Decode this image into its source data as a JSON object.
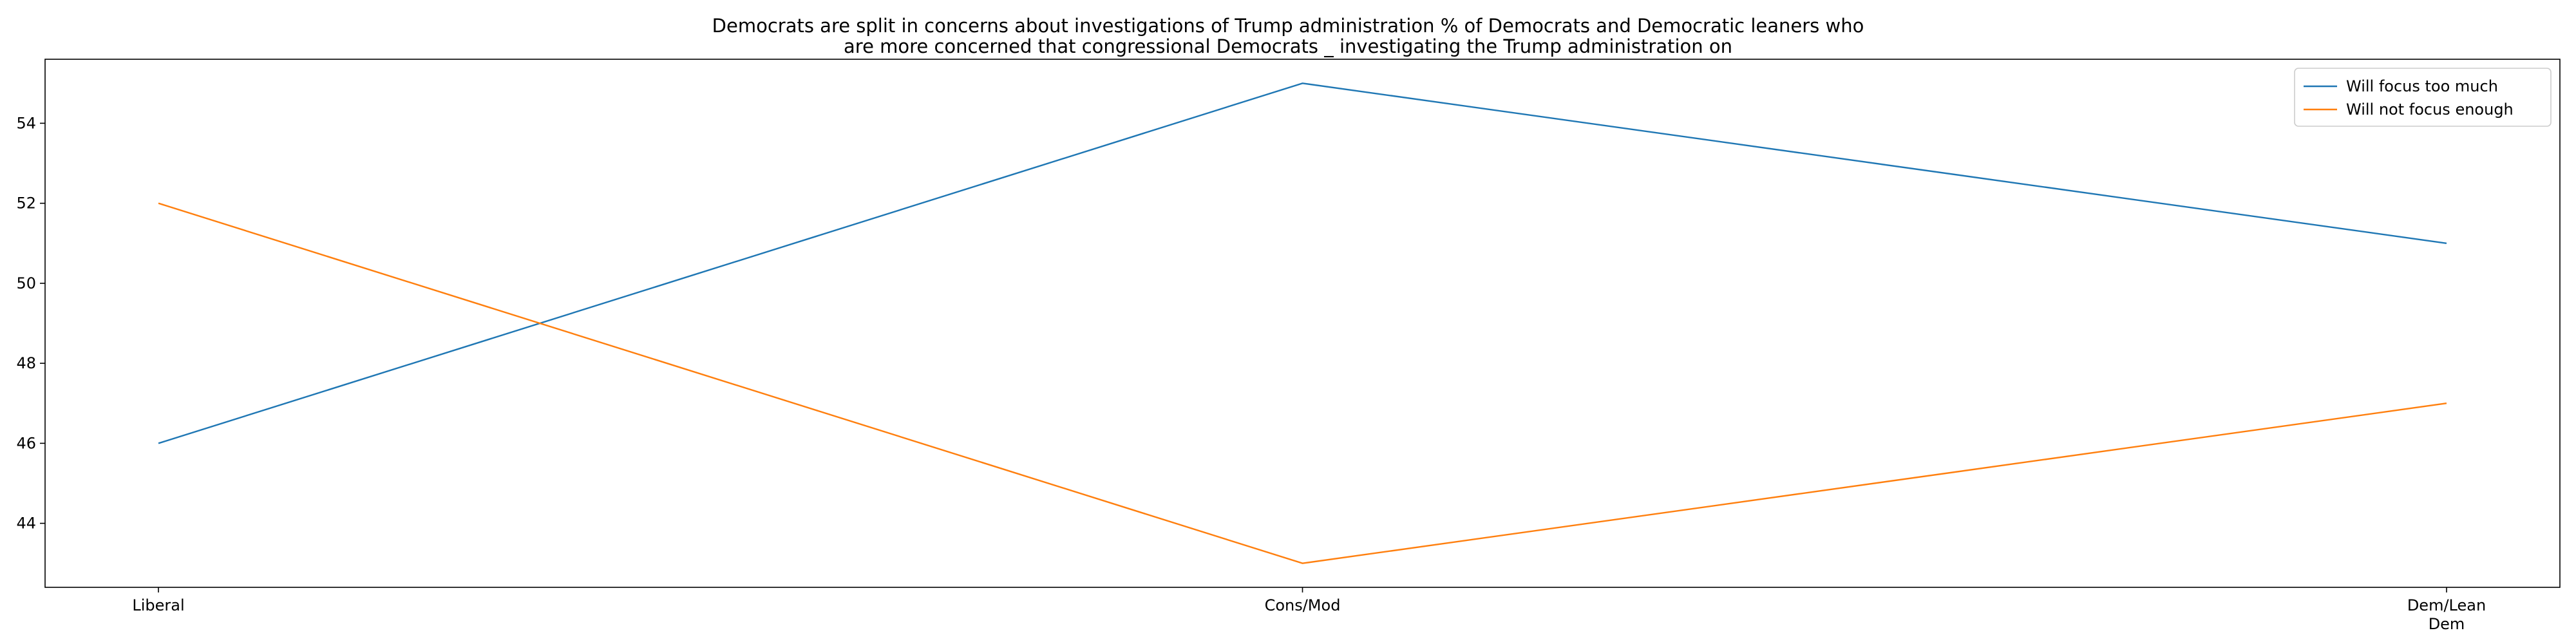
{
  "chart_data": {
    "type": "line",
    "title_lines": [
      "Democrats are split in concerns about investigations of Trump administration % of Democrats and Democratic leaners who",
      "are more concerned that congressional Democrats _ investigating the Trump administration on"
    ],
    "categories": [
      "Liberal",
      "Cons/Mod",
      "Dem/Lean Dem"
    ],
    "category_tick_lines": [
      [
        "Liberal"
      ],
      [
        "Cons/Mod"
      ],
      [
        "Dem/Lean",
        "Dem"
      ]
    ],
    "series": [
      {
        "name": "Will focus too much",
        "values": [
          46,
          55,
          51
        ],
        "color": "#1f77b4"
      },
      {
        "name": "Will not focus enough",
        "values": [
          52,
          43,
          47
        ],
        "color": "#ff7f0e"
      }
    ],
    "yticks": [
      44,
      46,
      48,
      50,
      52,
      54
    ],
    "ylim": [
      42.4,
      55.6
    ],
    "xlabel": "",
    "ylabel": "",
    "legend": "top-right",
    "grid": false
  }
}
